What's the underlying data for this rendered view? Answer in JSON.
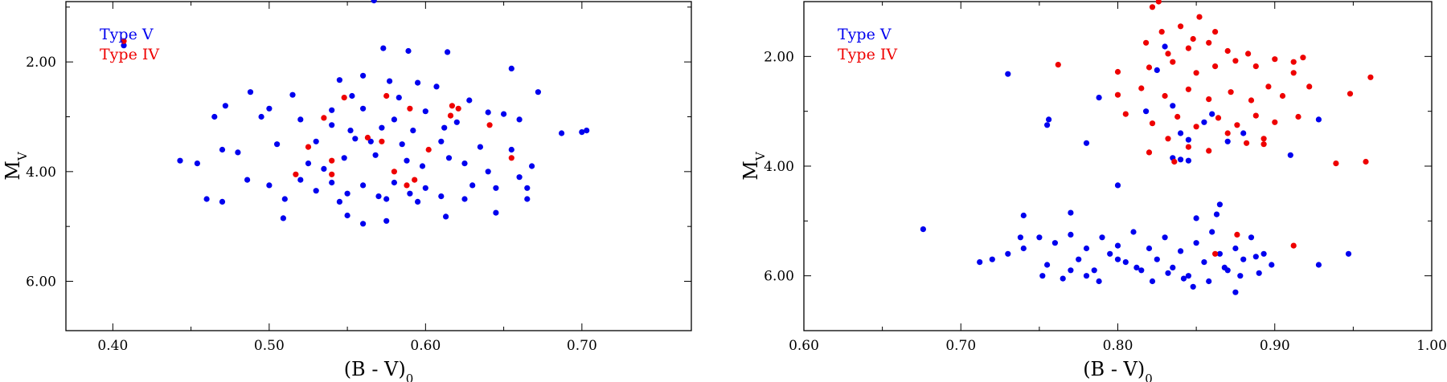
{
  "chart_data": [
    {
      "type": "scatter",
      "xlabel": "(B - V)",
      "xlabel_sub": "0",
      "ylabel": "M",
      "ylabel_sub": "V",
      "xlim": [
        0.37,
        0.77
      ],
      "ylim": [
        0.9,
        6.9
      ],
      "y_inverted": true,
      "xticks": [
        0.4,
        0.5,
        0.6,
        0.7
      ],
      "xtick_labels": [
        "0.40",
        "0.50",
        "0.60",
        "0.70"
      ],
      "yticks": [
        2.0,
        4.0,
        6.0
      ],
      "ytick_labels": [
        "2.00",
        "4.00",
        "6.00"
      ],
      "minor_ytick_step": 1.0,
      "legend": "top-left",
      "series": [
        {
          "name": "Type V",
          "color": "#0000ee",
          "points": [
            [
              0.567,
              0.88
            ],
            [
              0.407,
              1.7
            ],
            [
              0.573,
              1.75
            ],
            [
              0.589,
              1.8
            ],
            [
              0.614,
              1.82
            ],
            [
              0.655,
              2.12
            ],
            [
              0.56,
              2.25
            ],
            [
              0.545,
              2.33
            ],
            [
              0.577,
              2.35
            ],
            [
              0.595,
              2.38
            ],
            [
              0.607,
              2.45
            ],
            [
              0.672,
              2.55
            ],
            [
              0.488,
              2.55
            ],
            [
              0.515,
              2.6
            ],
            [
              0.553,
              2.62
            ],
            [
              0.583,
              2.65
            ],
            [
              0.628,
              2.7
            ],
            [
              0.472,
              2.8
            ],
            [
              0.5,
              2.85
            ],
            [
              0.54,
              2.88
            ],
            [
              0.56,
              2.85
            ],
            [
              0.6,
              2.9
            ],
            [
              0.64,
              2.92
            ],
            [
              0.65,
              2.95
            ],
            [
              0.465,
              3.0
            ],
            [
              0.495,
              3.0
            ],
            [
              0.52,
              3.05
            ],
            [
              0.58,
              3.05
            ],
            [
              0.62,
              3.1
            ],
            [
              0.66,
              3.05
            ],
            [
              0.687,
              3.3
            ],
            [
              0.7,
              3.28
            ],
            [
              0.703,
              3.25
            ],
            [
              0.47,
              3.6
            ],
            [
              0.48,
              3.65
            ],
            [
              0.443,
              3.8
            ],
            [
              0.454,
              3.85
            ],
            [
              0.505,
              3.5
            ],
            [
              0.53,
              3.45
            ],
            [
              0.555,
              3.4
            ],
            [
              0.565,
              3.45
            ],
            [
              0.585,
              3.5
            ],
            [
              0.61,
              3.45
            ],
            [
              0.635,
              3.55
            ],
            [
              0.655,
              3.6
            ],
            [
              0.668,
              3.9
            ],
            [
              0.66,
              4.1
            ],
            [
              0.486,
              4.15
            ],
            [
              0.5,
              4.25
            ],
            [
              0.52,
              4.15
            ],
            [
              0.54,
              4.2
            ],
            [
              0.56,
              4.25
            ],
            [
              0.58,
              4.2
            ],
            [
              0.6,
              4.3
            ],
            [
              0.63,
              4.25
            ],
            [
              0.645,
              4.3
            ],
            [
              0.665,
              4.3
            ],
            [
              0.46,
              4.5
            ],
            [
              0.47,
              4.55
            ],
            [
              0.51,
              4.5
            ],
            [
              0.545,
              4.55
            ],
            [
              0.575,
              4.5
            ],
            [
              0.595,
              4.55
            ],
            [
              0.625,
              4.5
            ],
            [
              0.645,
              4.75
            ],
            [
              0.665,
              4.5
            ],
            [
              0.509,
              4.85
            ],
            [
              0.55,
              4.8
            ],
            [
              0.56,
              4.95
            ],
            [
              0.575,
              4.9
            ],
            [
              0.613,
              4.82
            ],
            [
              0.535,
              3.95
            ],
            [
              0.525,
              3.85
            ],
            [
              0.548,
              3.75
            ],
            [
              0.568,
              3.7
            ],
            [
              0.588,
              3.8
            ],
            [
              0.598,
              3.9
            ],
            [
              0.615,
              3.75
            ],
            [
              0.625,
              3.85
            ],
            [
              0.64,
              4.0
            ],
            [
              0.53,
              4.35
            ],
            [
              0.55,
              4.4
            ],
            [
              0.57,
              4.45
            ],
            [
              0.59,
              4.4
            ],
            [
              0.61,
              4.45
            ],
            [
              0.54,
              3.15
            ],
            [
              0.552,
              3.25
            ],
            [
              0.572,
              3.2
            ],
            [
              0.592,
              3.25
            ],
            [
              0.612,
              3.2
            ]
          ]
        },
        {
          "name": "Type IV",
          "color": "#ee0000",
          "points": [
            [
              0.407,
              1.62
            ],
            [
              0.548,
              2.65
            ],
            [
              0.575,
              2.62
            ],
            [
              0.59,
              2.85
            ],
            [
              0.617,
              2.8
            ],
            [
              0.621,
              2.85
            ],
            [
              0.616,
              2.98
            ],
            [
              0.525,
              3.55
            ],
            [
              0.54,
              3.8
            ],
            [
              0.54,
              4.05
            ],
            [
              0.563,
              3.38
            ],
            [
              0.572,
              3.45
            ],
            [
              0.58,
              4.0
            ],
            [
              0.593,
              4.15
            ],
            [
              0.588,
              4.25
            ],
            [
              0.602,
              3.6
            ],
            [
              0.641,
              3.15
            ],
            [
              0.655,
              3.75
            ],
            [
              0.517,
              4.05
            ],
            [
              0.535,
              3.02
            ]
          ]
        }
      ]
    },
    {
      "type": "scatter",
      "xlabel": "(B - V)",
      "xlabel_sub": "0",
      "ylabel": "M",
      "ylabel_sub": "V",
      "xlim": [
        0.6,
        1.0
      ],
      "ylim": [
        1.0,
        7.0
      ],
      "y_inverted": true,
      "xticks": [
        0.6,
        0.7,
        0.8,
        0.9,
        1.0
      ],
      "xtick_labels": [
        "0.60",
        "0.70",
        "0.80",
        "0.90",
        "1.00"
      ],
      "yticks": [
        2.0,
        4.0,
        6.0
      ],
      "ytick_labels": [
        "2.00",
        "4.00",
        "6.00"
      ],
      "minor_ytick_step": 1.0,
      "legend": "top-left",
      "series": [
        {
          "name": "Type V",
          "color": "#0000ee",
          "points": [
            [
              0.73,
              2.32
            ],
            [
              0.825,
              2.25
            ],
            [
              0.83,
              1.82
            ],
            [
              0.788,
              2.75
            ],
            [
              0.756,
              3.15
            ],
            [
              0.755,
              3.25
            ],
            [
              0.78,
              3.58
            ],
            [
              0.818,
              3.0
            ],
            [
              0.835,
              2.9
            ],
            [
              0.84,
              3.4
            ],
            [
              0.845,
              3.52
            ],
            [
              0.855,
              3.2
            ],
            [
              0.86,
              3.05
            ],
            [
              0.87,
              3.55
            ],
            [
              0.88,
              3.4
            ],
            [
              0.835,
              3.85
            ],
            [
              0.84,
              3.88
            ],
            [
              0.845,
              3.9
            ],
            [
              0.928,
              3.15
            ],
            [
              0.91,
              3.8
            ],
            [
              0.8,
              4.35
            ],
            [
              0.676,
              5.15
            ],
            [
              0.712,
              5.75
            ],
            [
              0.72,
              5.7
            ],
            [
              0.73,
              5.6
            ],
            [
              0.74,
              5.5
            ],
            [
              0.74,
              4.9
            ],
            [
              0.75,
              5.3
            ],
            [
              0.755,
              5.8
            ],
            [
              0.76,
              5.4
            ],
            [
              0.77,
              5.25
            ],
            [
              0.77,
              4.85
            ],
            [
              0.775,
              5.7
            ],
            [
              0.78,
              5.5
            ],
            [
              0.785,
              5.9
            ],
            [
              0.79,
              5.3
            ],
            [
              0.795,
              5.6
            ],
            [
              0.8,
              5.45
            ],
            [
              0.805,
              5.75
            ],
            [
              0.81,
              5.2
            ],
            [
              0.815,
              5.9
            ],
            [
              0.82,
              5.5
            ],
            [
              0.825,
              5.7
            ],
            [
              0.83,
              5.3
            ],
            [
              0.835,
              5.85
            ],
            [
              0.84,
              5.55
            ],
            [
              0.845,
              6.0
            ],
            [
              0.85,
              5.4
            ],
            [
              0.85,
              4.95
            ],
            [
              0.855,
              5.75
            ],
            [
              0.86,
              5.2
            ],
            [
              0.863,
              4.88
            ],
            [
              0.865,
              5.6
            ],
            [
              0.865,
              4.7
            ],
            [
              0.87,
              5.9
            ],
            [
              0.875,
              5.5
            ],
            [
              0.875,
              6.3
            ],
            [
              0.88,
              5.7
            ],
            [
              0.885,
              5.3
            ],
            [
              0.89,
              5.95
            ],
            [
              0.893,
              5.6
            ],
            [
              0.898,
              5.8
            ],
            [
              0.928,
              5.8
            ],
            [
              0.947,
              5.6
            ],
            [
              0.752,
              6.0
            ],
            [
              0.765,
              6.05
            ],
            [
              0.77,
              5.9
            ],
            [
              0.78,
              6.0
            ],
            [
              0.788,
              6.1
            ],
            [
              0.8,
              5.7
            ],
            [
              0.812,
              5.85
            ],
            [
              0.822,
              6.1
            ],
            [
              0.832,
              5.95
            ],
            [
              0.842,
              6.05
            ],
            [
              0.848,
              6.2
            ],
            [
              0.858,
              6.1
            ],
            [
              0.868,
              5.85
            ],
            [
              0.878,
              6.0
            ],
            [
              0.888,
              5.65
            ],
            [
              0.738,
              5.3
            ]
          ]
        },
        {
          "name": "Type IV",
          "color": "#ee0000",
          "points": [
            [
              0.822,
              1.1
            ],
            [
              0.826,
              1.0
            ],
            [
              0.852,
              1.28
            ],
            [
              0.828,
              1.55
            ],
            [
              0.84,
              1.45
            ],
            [
              0.848,
              1.68
            ],
            [
              0.862,
              1.55
            ],
            [
              0.818,
              1.75
            ],
            [
              0.832,
              1.95
            ],
            [
              0.845,
              1.85
            ],
            [
              0.858,
              1.75
            ],
            [
              0.87,
              1.9
            ],
            [
              0.883,
              1.95
            ],
            [
              0.762,
              2.15
            ],
            [
              0.8,
              2.28
            ],
            [
              0.82,
              2.2
            ],
            [
              0.835,
              2.1
            ],
            [
              0.85,
              2.3
            ],
            [
              0.862,
              2.18
            ],
            [
              0.875,
              2.08
            ],
            [
              0.888,
              2.18
            ],
            [
              0.9,
              2.05
            ],
            [
              0.912,
              2.1
            ],
            [
              0.918,
              2.02
            ],
            [
              0.922,
              2.55
            ],
            [
              0.912,
              2.3
            ],
            [
              0.948,
              2.68
            ],
            [
              0.961,
              2.38
            ],
            [
              0.8,
              2.7
            ],
            [
              0.815,
              2.58
            ],
            [
              0.83,
              2.72
            ],
            [
              0.845,
              2.6
            ],
            [
              0.858,
              2.78
            ],
            [
              0.872,
              2.65
            ],
            [
              0.885,
              2.8
            ],
            [
              0.896,
              2.55
            ],
            [
              0.905,
              2.72
            ],
            [
              0.805,
              3.05
            ],
            [
              0.822,
              3.22
            ],
            [
              0.838,
              3.1
            ],
            [
              0.85,
              3.28
            ],
            [
              0.864,
              3.12
            ],
            [
              0.876,
              3.25
            ],
            [
              0.888,
              3.08
            ],
            [
              0.9,
              3.2
            ],
            [
              0.915,
              3.1
            ],
            [
              0.82,
              3.75
            ],
            [
              0.832,
              3.5
            ],
            [
              0.845,
              3.65
            ],
            [
              0.858,
              3.72
            ],
            [
              0.87,
              3.4
            ],
            [
              0.882,
              3.58
            ],
            [
              0.893,
              3.6
            ],
            [
              0.836,
              3.92
            ],
            [
              0.939,
              3.95
            ],
            [
              0.958,
              3.92
            ],
            [
              0.876,
              5.25
            ],
            [
              0.862,
              5.6
            ],
            [
              0.912,
              5.45
            ],
            [
              0.893,
              3.5
            ]
          ]
        }
      ]
    }
  ]
}
